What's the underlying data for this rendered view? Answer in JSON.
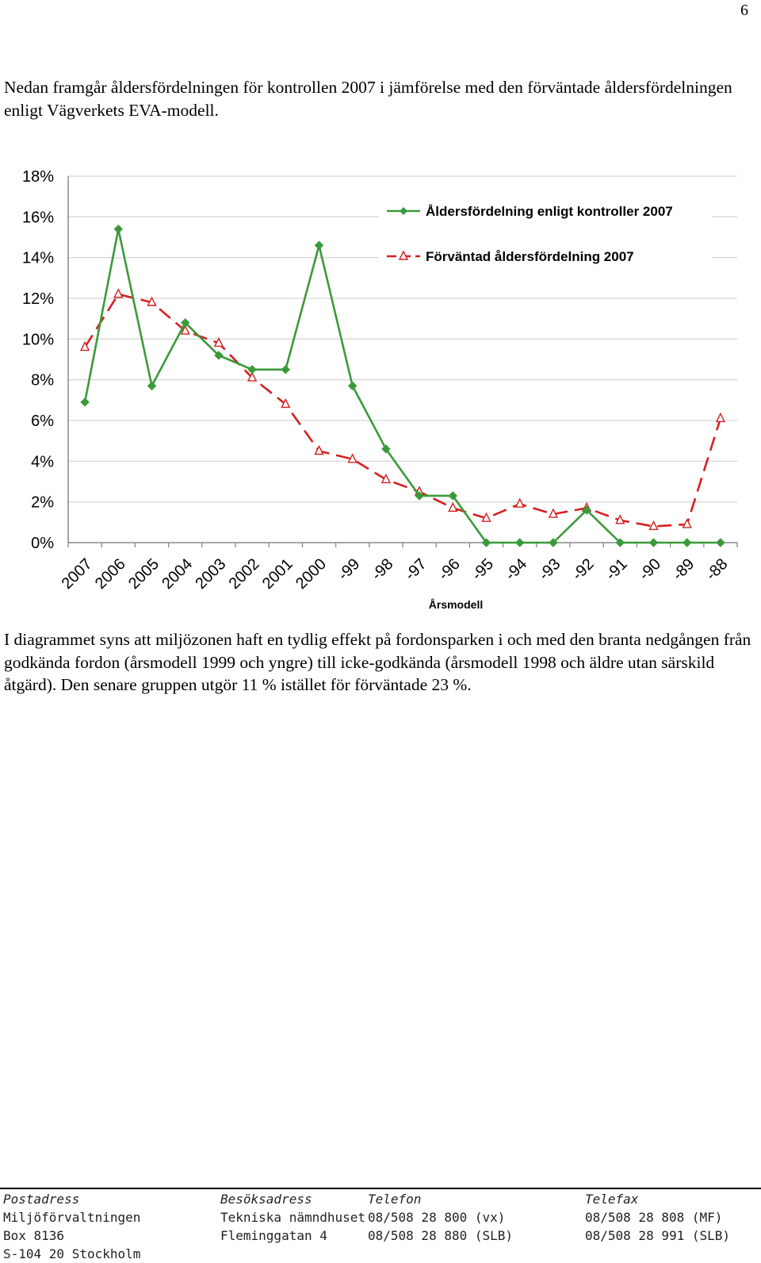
{
  "page_number": "6",
  "intro_text": "Nedan framgår åldersfördelningen för kontrollen 2007 i jämförelse med den förväntade åldersfördelningen enligt Vägverkets EVA-modell.",
  "body_text": "I diagrammet syns att miljözonen haft en tydlig effekt på fordonsparken i och med den branta nedgången från godkända fordon (årsmodell 1999 och yngre) till icke-godkända (årsmodell 1998 och äldre utan särskild åtgärd). Den senare gruppen utgör 11 % istället för förväntade 23 %.",
  "chart_data": {
    "type": "line",
    "xlabel": "Årsmodell",
    "ylabel": "",
    "categories": [
      "2007",
      "2006",
      "2005",
      "2004",
      "2003",
      "2002",
      "2001",
      "2000",
      "-99",
      "-98",
      "-97",
      "-96",
      "-95",
      "-94",
      "-93",
      "-92",
      "-91",
      "-90",
      "-89",
      "-88"
    ],
    "yticks": [
      "0%",
      "2%",
      "4%",
      "6%",
      "8%",
      "10%",
      "12%",
      "14%",
      "16%",
      "18%"
    ],
    "ylim": [
      0,
      18
    ],
    "grid": true,
    "legend_position": "top-right",
    "series": [
      {
        "name": "Åldersfördelning enligt kontroller 2007",
        "color": "#3a9a3a",
        "marker": "diamond",
        "line_style": "solid",
        "values": [
          6.9,
          15.4,
          7.7,
          10.8,
          9.2,
          8.5,
          8.5,
          14.6,
          7.7,
          4.6,
          2.3,
          2.3,
          0,
          0,
          0,
          1.6,
          0,
          0,
          0,
          0
        ]
      },
      {
        "name": "Förväntad åldersfördelning 2007",
        "color": "#d42020",
        "marker": "triangle",
        "line_style": "dashed",
        "values": [
          9.6,
          12.2,
          11.8,
          10.4,
          9.8,
          8.1,
          6.8,
          4.5,
          4.1,
          3.1,
          2.5,
          1.7,
          1.2,
          1.9,
          1.4,
          1.7,
          1.1,
          0.8,
          0.9,
          6.1
        ]
      }
    ]
  },
  "footer": {
    "postadress_label": "Postadress",
    "postadress_line1": "Miljöförvaltningen",
    "postadress_line2": "Box 8136",
    "postadress_line3": "S-104 20 Stockholm",
    "besoksadress_label": "Besöksadress",
    "besoksadress_line1": "Tekniska nämndhuset",
    "besoksadress_line2": "Fleminggatan 4",
    "telefon_label": "Telefon",
    "telefon_line1": "08/508 28 800 (vx)",
    "telefon_line2": "08/508 28 880 (SLB)",
    "telefax_label": "Telefax",
    "telefax_line1": "08/508 28 808 (MF)",
    "telefax_line2": "08/508 28 991 (SLB)"
  }
}
